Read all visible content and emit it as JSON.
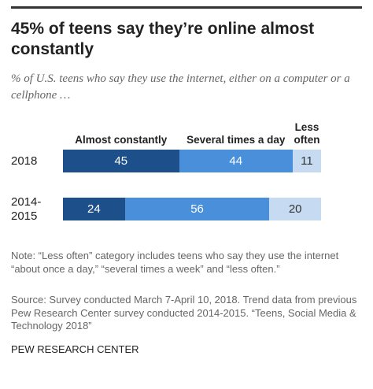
{
  "chart_data": {
    "type": "bar",
    "orientation": "horizontal",
    "stacked": true,
    "title": "45% of teens say they’re online almost constantly",
    "subtitle": "% of U.S. teens who say they use the internet, either on a computer or a cellphone …",
    "categories": [
      "2018",
      "2014-2015"
    ],
    "series": [
      {
        "name": "Almost constantly",
        "color": "#1d4f8a",
        "values": [
          45,
          24
        ]
      },
      {
        "name": "Several times a day",
        "color": "#4a8fd9",
        "values": [
          44,
          56
        ]
      },
      {
        "name": "Less often",
        "color": "#c6dbf1",
        "values": [
          11,
          20
        ]
      }
    ],
    "note": "Note: “Less often” category includes teens who say they use the internet “about once a day,” “several times a week” and “less often.”",
    "source": "Source: Survey conducted March 7-April 10, 2018. Trend data from previous Pew Research Center survey conducted 2014-2015. “Teens, Social Media & Technology 2018”",
    "credit": "PEW RESEARCH CENTER"
  }
}
